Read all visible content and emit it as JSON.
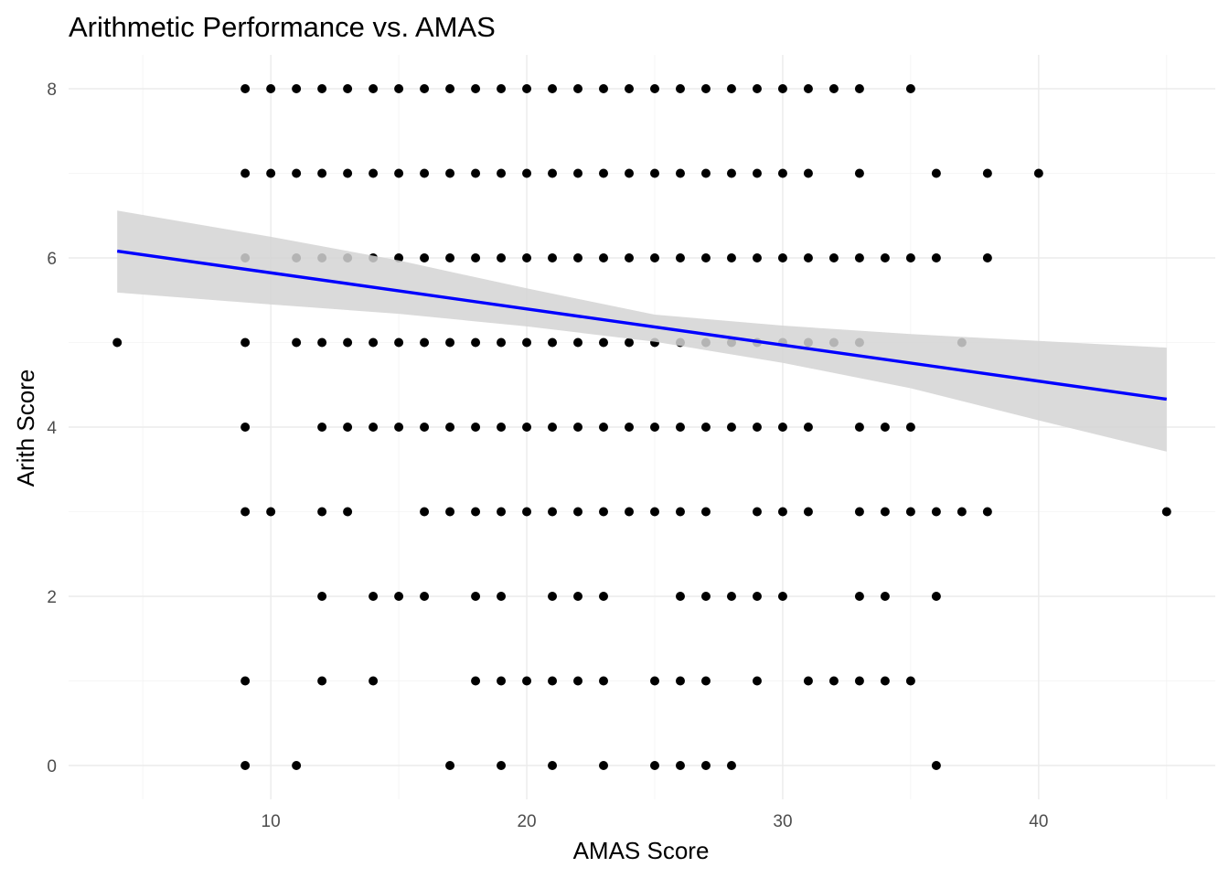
{
  "chart_data": {
    "type": "scatter",
    "title": "Arithmetic Performance vs. AMAS",
    "xlabel": "AMAS Score",
    "ylabel": "Arith Score",
    "xlim": [
      2.1,
      46.9
    ],
    "ylim": [
      -0.4,
      8.4
    ],
    "x_ticks": [
      10,
      20,
      30,
      40
    ],
    "y_ticks": [
      0,
      2,
      4,
      6,
      8
    ],
    "grid": true,
    "colors": {
      "points": "#000000",
      "fit_line": "#0000ff",
      "ribbon": "#d3d3d3"
    },
    "points": [
      [
        9,
        8
      ],
      [
        10,
        8
      ],
      [
        11,
        8
      ],
      [
        12,
        8
      ],
      [
        13,
        8
      ],
      [
        14,
        8
      ],
      [
        15,
        8
      ],
      [
        16,
        8
      ],
      [
        17,
        8
      ],
      [
        18,
        8
      ],
      [
        19,
        8
      ],
      [
        20,
        8
      ],
      [
        21,
        8
      ],
      [
        22,
        8
      ],
      [
        23,
        8
      ],
      [
        24,
        8
      ],
      [
        25,
        8
      ],
      [
        26,
        8
      ],
      [
        27,
        8
      ],
      [
        28,
        8
      ],
      [
        29,
        8
      ],
      [
        30,
        8
      ],
      [
        31,
        8
      ],
      [
        32,
        8
      ],
      [
        33,
        8
      ],
      [
        35,
        8
      ],
      [
        9,
        7
      ],
      [
        10,
        7
      ],
      [
        11,
        7
      ],
      [
        12,
        7
      ],
      [
        13,
        7
      ],
      [
        14,
        7
      ],
      [
        15,
        7
      ],
      [
        16,
        7
      ],
      [
        17,
        7
      ],
      [
        18,
        7
      ],
      [
        19,
        7
      ],
      [
        20,
        7
      ],
      [
        21,
        7
      ],
      [
        22,
        7
      ],
      [
        23,
        7
      ],
      [
        24,
        7
      ],
      [
        25,
        7
      ],
      [
        26,
        7
      ],
      [
        27,
        7
      ],
      [
        28,
        7
      ],
      [
        29,
        7
      ],
      [
        30,
        7
      ],
      [
        31,
        7
      ],
      [
        33,
        7
      ],
      [
        36,
        7
      ],
      [
        38,
        7
      ],
      [
        40,
        7
      ],
      [
        9,
        6
      ],
      [
        11,
        6
      ],
      [
        12,
        6
      ],
      [
        13,
        6
      ],
      [
        14,
        6
      ],
      [
        15,
        6
      ],
      [
        16,
        6
      ],
      [
        17,
        6
      ],
      [
        18,
        6
      ],
      [
        19,
        6
      ],
      [
        20,
        6
      ],
      [
        21,
        6
      ],
      [
        22,
        6
      ],
      [
        23,
        6
      ],
      [
        24,
        6
      ],
      [
        25,
        6
      ],
      [
        26,
        6
      ],
      [
        27,
        6
      ],
      [
        28,
        6
      ],
      [
        29,
        6
      ],
      [
        30,
        6
      ],
      [
        31,
        6
      ],
      [
        32,
        6
      ],
      [
        33,
        6
      ],
      [
        34,
        6
      ],
      [
        35,
        6
      ],
      [
        36,
        6
      ],
      [
        38,
        6
      ],
      [
        4,
        5
      ],
      [
        9,
        5
      ],
      [
        11,
        5
      ],
      [
        12,
        5
      ],
      [
        13,
        5
      ],
      [
        14,
        5
      ],
      [
        15,
        5
      ],
      [
        16,
        5
      ],
      [
        17,
        5
      ],
      [
        18,
        5
      ],
      [
        19,
        5
      ],
      [
        20,
        5
      ],
      [
        21,
        5
      ],
      [
        22,
        5
      ],
      [
        23,
        5
      ],
      [
        24,
        5
      ],
      [
        25,
        5
      ],
      [
        26,
        5
      ],
      [
        27,
        5
      ],
      [
        28,
        5
      ],
      [
        29,
        5
      ],
      [
        30,
        5
      ],
      [
        31,
        5
      ],
      [
        32,
        5
      ],
      [
        33,
        5
      ],
      [
        37,
        5
      ],
      [
        9,
        4
      ],
      [
        12,
        4
      ],
      [
        13,
        4
      ],
      [
        14,
        4
      ],
      [
        15,
        4
      ],
      [
        16,
        4
      ],
      [
        17,
        4
      ],
      [
        18,
        4
      ],
      [
        19,
        4
      ],
      [
        20,
        4
      ],
      [
        21,
        4
      ],
      [
        22,
        4
      ],
      [
        23,
        4
      ],
      [
        24,
        4
      ],
      [
        25,
        4
      ],
      [
        26,
        4
      ],
      [
        27,
        4
      ],
      [
        28,
        4
      ],
      [
        29,
        4
      ],
      [
        30,
        4
      ],
      [
        31,
        4
      ],
      [
        33,
        4
      ],
      [
        34,
        4
      ],
      [
        35,
        4
      ],
      [
        9,
        3
      ],
      [
        10,
        3
      ],
      [
        12,
        3
      ],
      [
        13,
        3
      ],
      [
        16,
        3
      ],
      [
        17,
        3
      ],
      [
        18,
        3
      ],
      [
        19,
        3
      ],
      [
        20,
        3
      ],
      [
        21,
        3
      ],
      [
        22,
        3
      ],
      [
        23,
        3
      ],
      [
        24,
        3
      ],
      [
        25,
        3
      ],
      [
        26,
        3
      ],
      [
        27,
        3
      ],
      [
        29,
        3
      ],
      [
        30,
        3
      ],
      [
        31,
        3
      ],
      [
        33,
        3
      ],
      [
        34,
        3
      ],
      [
        35,
        3
      ],
      [
        36,
        3
      ],
      [
        37,
        3
      ],
      [
        38,
        3
      ],
      [
        45,
        3
      ],
      [
        12,
        2
      ],
      [
        14,
        2
      ],
      [
        15,
        2
      ],
      [
        16,
        2
      ],
      [
        18,
        2
      ],
      [
        19,
        2
      ],
      [
        21,
        2
      ],
      [
        22,
        2
      ],
      [
        23,
        2
      ],
      [
        26,
        2
      ],
      [
        27,
        2
      ],
      [
        28,
        2
      ],
      [
        29,
        2
      ],
      [
        30,
        2
      ],
      [
        33,
        2
      ],
      [
        34,
        2
      ],
      [
        36,
        2
      ],
      [
        9,
        1
      ],
      [
        12,
        1
      ],
      [
        14,
        1
      ],
      [
        18,
        1
      ],
      [
        19,
        1
      ],
      [
        20,
        1
      ],
      [
        21,
        1
      ],
      [
        22,
        1
      ],
      [
        23,
        1
      ],
      [
        25,
        1
      ],
      [
        26,
        1
      ],
      [
        27,
        1
      ],
      [
        29,
        1
      ],
      [
        31,
        1
      ],
      [
        32,
        1
      ],
      [
        33,
        1
      ],
      [
        34,
        1
      ],
      [
        35,
        1
      ],
      [
        9,
        0
      ],
      [
        11,
        0
      ],
      [
        17,
        0
      ],
      [
        19,
        0
      ],
      [
        21,
        0
      ],
      [
        23,
        0
      ],
      [
        25,
        0
      ],
      [
        26,
        0
      ],
      [
        27,
        0
      ],
      [
        28,
        0
      ],
      [
        36,
        0
      ]
    ],
    "fit_line": {
      "x": [
        4,
        45
      ],
      "y": [
        6.08,
        4.33
      ]
    },
    "confidence_band": {
      "x": [
        4,
        10,
        15,
        20,
        25,
        30,
        35,
        40,
        45
      ],
      "lower": [
        5.59,
        5.45,
        5.34,
        5.19,
        5.01,
        4.76,
        4.46,
        4.08,
        3.71
      ],
      "upper": [
        6.56,
        6.25,
        5.97,
        5.64,
        5.33,
        5.2,
        5.1,
        5.02,
        4.94
      ]
    }
  }
}
